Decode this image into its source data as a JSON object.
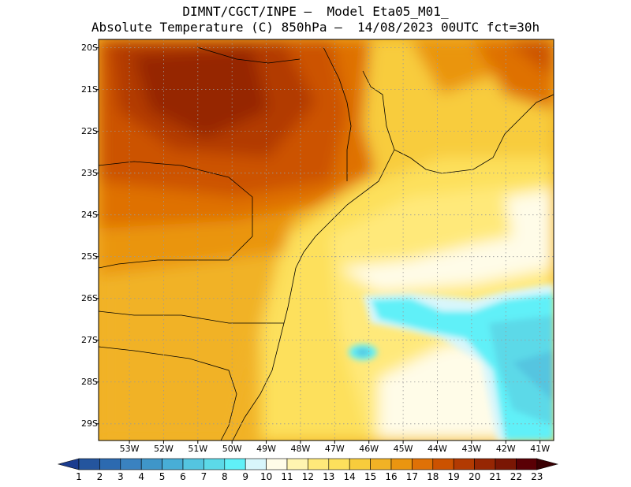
{
  "title": {
    "line1": "DIMNT/CGCT/INPE –  Model Eta05_M01_",
    "line2": "Absolute Temperature (C) 850hPa –  14/08/2023 00UTC fct=30h"
  },
  "map": {
    "lat_labels": [
      "20S",
      "21S",
      "22S",
      "23S",
      "24S",
      "25S",
      "26S",
      "27S",
      "28S",
      "29S"
    ],
    "lon_labels": [
      "53W",
      "52W",
      "51W",
      "50W",
      "49W",
      "48W",
      "47W",
      "46W",
      "45W",
      "44W",
      "43W",
      "42W",
      "41W"
    ],
    "lat_range": [
      -29.4,
      -19.8
    ],
    "lon_range": [
      -53.9,
      -40.6
    ]
  },
  "colorbar": {
    "labels": [
      "1",
      "2",
      "3",
      "4",
      "5",
      "6",
      "7",
      "8",
      "9",
      "10",
      "11",
      "12",
      "13",
      "14",
      "15",
      "16",
      "17",
      "18",
      "19",
      "20",
      "21",
      "22",
      "23"
    ],
    "colors": [
      "#1a3c8f",
      "#24559e",
      "#2c6ab0",
      "#3a82c0",
      "#3f96c9",
      "#48aed6",
      "#54c5e0",
      "#5cd9e8",
      "#60f0f8",
      "#d8f6fb",
      "#fffce8",
      "#fff4b0",
      "#ffe97a",
      "#fde05c",
      "#f8cc3c",
      "#f1b225",
      "#ea9510",
      "#df7106",
      "#cc5200",
      "#b23a02",
      "#962603",
      "#7a1604",
      "#5a0005"
    ]
  },
  "colors": {
    "warm_interior": "#b23a02",
    "cool_anomaly": "#60f0f8"
  }
}
